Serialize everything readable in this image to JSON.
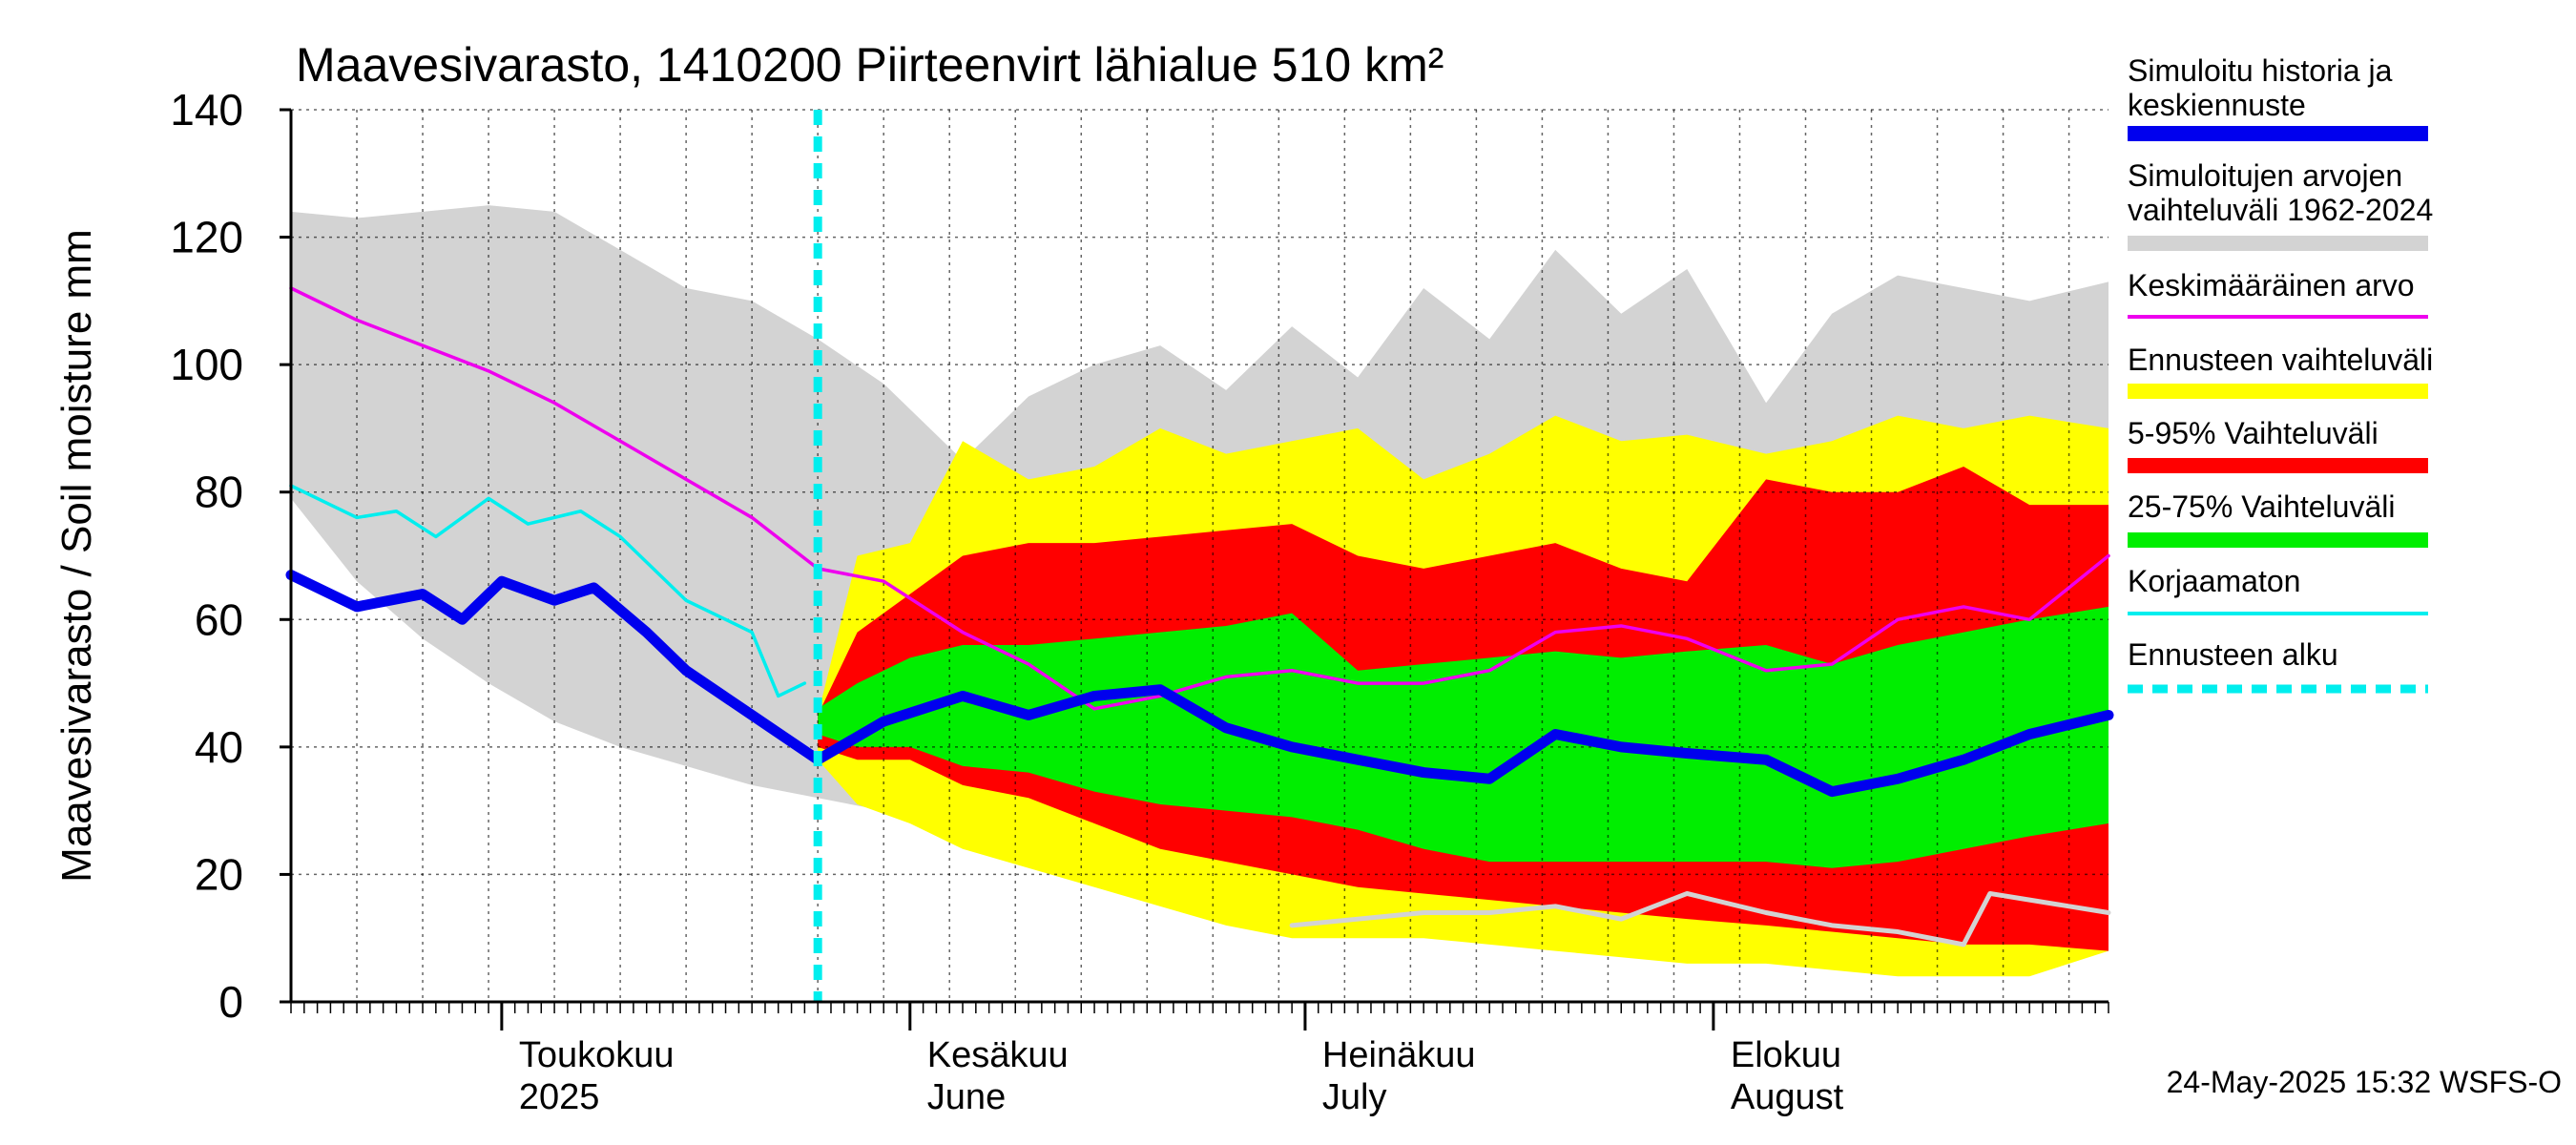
{
  "chart_data": {
    "type": "area",
    "title": "Maavesivarasto, 1410200 Piirteenvirt lähialue 510 km²",
    "ylabel": "Maavesivarasto / Soil moisture   mm",
    "xlabel": "",
    "ylim": [
      0,
      140
    ],
    "y_ticks": [
      0,
      20,
      40,
      60,
      80,
      100,
      120,
      140
    ],
    "xlim": [
      "2025-04-15",
      "2025-08-31"
    ],
    "forecast_start": "2025-05-25",
    "grid": true,
    "legend_position": "right",
    "month_labels": [
      {
        "date": "2025-05-01",
        "fi": "Toukokuu",
        "en": "2025"
      },
      {
        "date": "2025-06-01",
        "fi": "Kesäkuu",
        "en": "June"
      },
      {
        "date": "2025-07-01",
        "fi": "Heinäkuu",
        "en": "July"
      },
      {
        "date": "2025-08-01",
        "fi": "Elokuu",
        "en": "August"
      }
    ],
    "legend": [
      {
        "label": "Simuloitu historia ja keskiennuste",
        "color": "#0000ee",
        "style": "thick"
      },
      {
        "label": "Simuloitujen arvojen vaihteluväli 1962-2024",
        "color": "#d3d3d3",
        "style": "thick"
      },
      {
        "label": "Keskimääräinen arvo",
        "color": "#ee00ee",
        "style": "line"
      },
      {
        "label": "Ennusteen vaihteluväli",
        "color": "#ffff00",
        "style": "thick"
      },
      {
        "label": "5-95% Vaihteluväli",
        "color": "#ff0000",
        "style": "thick"
      },
      {
        "label": "25-75% Vaihteluväli",
        "color": "#00ee00",
        "style": "thick"
      },
      {
        "label": "Korjaamaton",
        "color": "#00eeee",
        "style": "line"
      },
      {
        "label": "Ennusteen alku",
        "color": "#00eeee",
        "style": "dashed"
      }
    ],
    "series": [
      {
        "name": "Simulated history range 1962-2024",
        "color": "#d3d3d3",
        "x": [
          "2025-04-15",
          "2025-04-20",
          "2025-04-25",
          "2025-04-30",
          "2025-05-05",
          "2025-05-10",
          "2025-05-15",
          "2025-05-20",
          "2025-05-25",
          "2025-05-30",
          "2025-06-05",
          "2025-06-10",
          "2025-06-15",
          "2025-06-20",
          "2025-06-25",
          "2025-06-30",
          "2025-07-05",
          "2025-07-10",
          "2025-07-15",
          "2025-07-20",
          "2025-07-25",
          "2025-07-30",
          "2025-08-05",
          "2025-08-10",
          "2025-08-15",
          "2025-08-20",
          "2025-08-25",
          "2025-08-31"
        ],
        "upper": [
          124,
          123,
          124,
          125,
          124,
          118,
          112,
          110,
          104,
          97,
          85,
          95,
          100,
          103,
          96,
          106,
          98,
          112,
          104,
          118,
          108,
          115,
          94,
          108,
          114,
          112,
          110,
          113
        ],
        "lower": [
          79,
          66,
          57,
          50,
          44,
          40,
          37,
          34,
          32,
          30,
          28,
          26,
          24,
          21,
          19,
          17,
          16,
          16,
          16,
          16,
          15,
          15,
          14,
          13,
          12,
          12,
          11,
          11
        ]
      },
      {
        "name": "Forecast range",
        "color": "#ffff00",
        "x": [
          "2025-05-25",
          "2025-05-28",
          "2025-06-01",
          "2025-06-05",
          "2025-06-10",
          "2025-06-15",
          "2025-06-20",
          "2025-06-25",
          "2025-06-30",
          "2025-07-05",
          "2025-07-10",
          "2025-07-15",
          "2025-07-20",
          "2025-07-25",
          "2025-07-30",
          "2025-08-05",
          "2025-08-10",
          "2025-08-15",
          "2025-08-20",
          "2025-08-25",
          "2025-08-31"
        ],
        "upper": [
          45,
          70,
          72,
          88,
          82,
          84,
          90,
          86,
          88,
          90,
          82,
          86,
          92,
          88,
          89,
          86,
          88,
          92,
          90,
          92,
          90
        ],
        "lower": [
          38,
          31,
          28,
          24,
          21,
          18,
          15,
          12,
          10,
          10,
          10,
          9,
          8,
          7,
          6,
          6,
          5,
          4,
          4,
          4,
          8
        ]
      },
      {
        "name": "5-95% range",
        "color": "#ff0000",
        "x": [
          "2025-05-25",
          "2025-05-28",
          "2025-06-01",
          "2025-06-05",
          "2025-06-10",
          "2025-06-15",
          "2025-06-20",
          "2025-06-25",
          "2025-06-30",
          "2025-07-05",
          "2025-07-10",
          "2025-07-15",
          "2025-07-20",
          "2025-07-25",
          "2025-07-30",
          "2025-08-05",
          "2025-08-10",
          "2025-08-15",
          "2025-08-20",
          "2025-08-25",
          "2025-08-31"
        ],
        "upper": [
          45,
          58,
          64,
          70,
          72,
          72,
          73,
          74,
          75,
          70,
          68,
          70,
          72,
          68,
          66,
          82,
          80,
          80,
          84,
          78,
          78
        ],
        "lower": [
          40,
          38,
          38,
          34,
          32,
          28,
          24,
          22,
          20,
          18,
          17,
          16,
          15,
          14,
          13,
          12,
          11,
          10,
          9,
          9,
          8
        ]
      },
      {
        "name": "25-75% range",
        "color": "#00ee00",
        "x": [
          "2025-05-25",
          "2025-05-28",
          "2025-06-01",
          "2025-06-05",
          "2025-06-10",
          "2025-06-15",
          "2025-06-20",
          "2025-06-25",
          "2025-06-30",
          "2025-07-05",
          "2025-07-10",
          "2025-07-15",
          "2025-07-20",
          "2025-07-25",
          "2025-07-30",
          "2025-08-05",
          "2025-08-10",
          "2025-08-15",
          "2025-08-20",
          "2025-08-25",
          "2025-08-31"
        ],
        "upper": [
          46,
          50,
          54,
          56,
          56,
          57,
          58,
          59,
          61,
          52,
          53,
          54,
          55,
          54,
          55,
          56,
          53,
          56,
          58,
          60,
          62
        ],
        "lower": [
          42,
          40,
          40,
          37,
          36,
          33,
          31,
          30,
          29,
          27,
          24,
          22,
          22,
          22,
          22,
          22,
          21,
          22,
          24,
          26,
          28
        ]
      },
      {
        "name": "Mean",
        "color": "#ee00ee",
        "x": [
          "2025-04-15",
          "2025-04-20",
          "2025-04-25",
          "2025-04-30",
          "2025-05-05",
          "2025-05-10",
          "2025-05-15",
          "2025-05-20",
          "2025-05-25",
          "2025-05-30",
          "2025-06-05",
          "2025-06-10",
          "2025-06-15",
          "2025-06-20",
          "2025-06-25",
          "2025-06-30",
          "2025-07-05",
          "2025-07-10",
          "2025-07-15",
          "2025-07-20",
          "2025-07-25",
          "2025-07-30",
          "2025-08-05",
          "2025-08-10",
          "2025-08-15",
          "2025-08-20",
          "2025-08-25",
          "2025-08-31"
        ],
        "values": [
          112,
          107,
          103,
          99,
          94,
          88,
          82,
          76,
          68,
          66,
          58,
          53,
          46,
          48,
          51,
          52,
          50,
          50,
          52,
          58,
          59,
          57,
          52,
          53,
          60,
          62,
          60,
          70
        ]
      },
      {
        "name": "Uncorrected",
        "color": "#00eeee",
        "x": [
          "2025-04-15",
          "2025-04-20",
          "2025-04-23",
          "2025-04-26",
          "2025-04-30",
          "2025-05-03",
          "2025-05-07",
          "2025-05-10",
          "2025-05-15",
          "2025-05-20",
          "2025-05-22",
          "2025-05-24"
        ],
        "values": [
          81,
          76,
          77,
          73,
          79,
          75,
          77,
          73,
          63,
          58,
          48,
          50
        ]
      },
      {
        "name": "Simulated history and median forecast",
        "color": "#0000ee",
        "x": [
          "2025-04-15",
          "2025-04-20",
          "2025-04-25",
          "2025-04-28",
          "2025-05-01",
          "2025-05-05",
          "2025-05-08",
          "2025-05-12",
          "2025-05-15",
          "2025-05-20",
          "2025-05-25",
          "2025-05-30",
          "2025-06-05",
          "2025-06-10",
          "2025-06-15",
          "2025-06-20",
          "2025-06-25",
          "2025-06-30",
          "2025-07-05",
          "2025-07-10",
          "2025-07-15",
          "2025-07-20",
          "2025-07-25",
          "2025-07-30",
          "2025-08-05",
          "2025-08-10",
          "2025-08-15",
          "2025-08-20",
          "2025-08-25",
          "2025-08-31"
        ],
        "values": [
          67,
          62,
          64,
          60,
          66,
          63,
          65,
          58,
          52,
          45,
          38,
          44,
          48,
          45,
          48,
          49,
          43,
          40,
          38,
          36,
          35,
          42,
          40,
          39,
          38,
          33,
          35,
          38,
          42,
          45
        ]
      },
      {
        "name": "Uncorrected forecast",
        "color": "#d3d3d3",
        "x": [
          "2025-06-30",
          "2025-07-05",
          "2025-07-10",
          "2025-07-15",
          "2025-07-20",
          "2025-07-25",
          "2025-07-30",
          "2025-08-05",
          "2025-08-10",
          "2025-08-15",
          "2025-08-20",
          "2025-08-22",
          "2025-08-25",
          "2025-08-31"
        ],
        "values": [
          12,
          13,
          14,
          14,
          15,
          13,
          17,
          14,
          12,
          11,
          9,
          17,
          16,
          14
        ]
      }
    ]
  },
  "footer": "24-May-2025 15:32 WSFS-O"
}
